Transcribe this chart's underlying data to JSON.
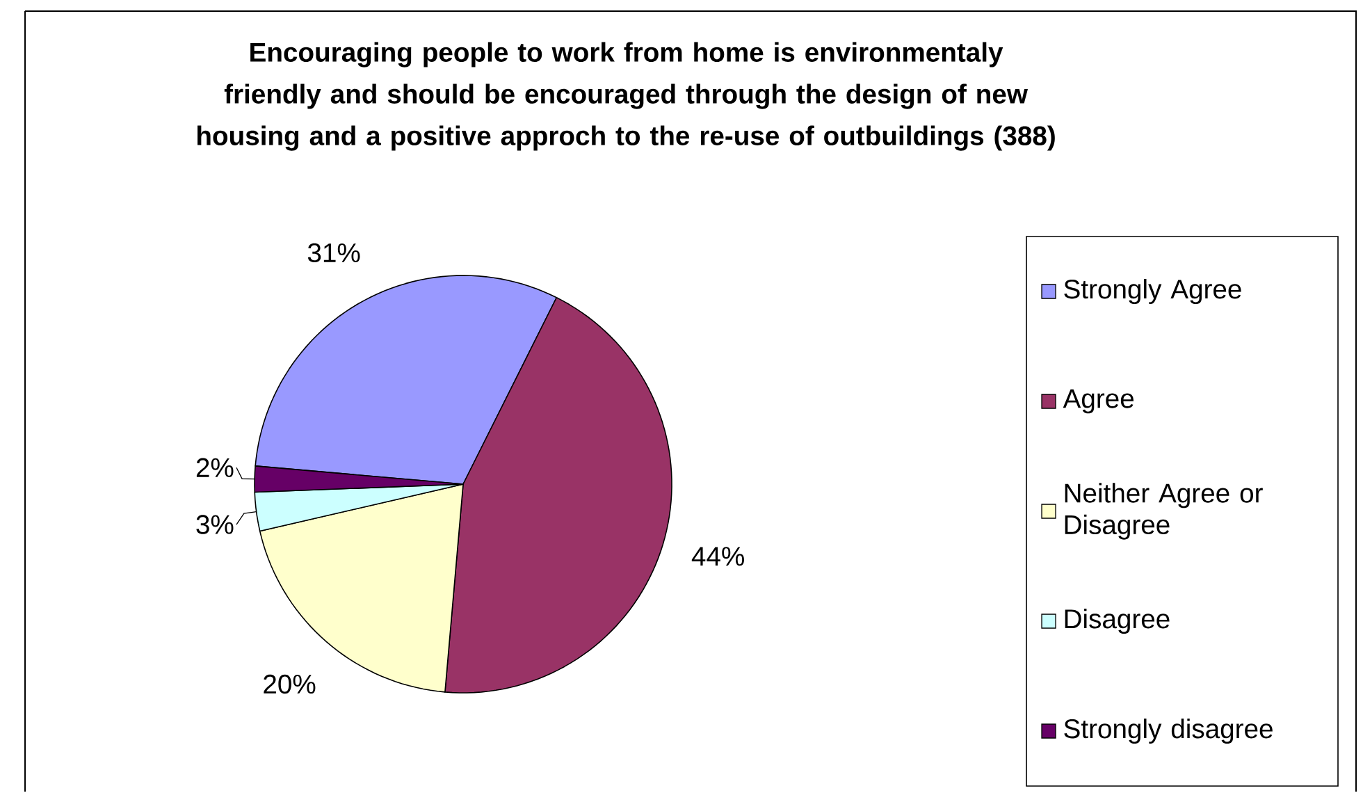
{
  "chart_data": {
    "type": "pie",
    "title": "Encouraging people to work from home is environmentaly friendly and should be encouraged through the design of new housing and a positive approch to the re-use of outbuildings (388)",
    "categories": [
      "Strongly Agree",
      "Agree",
      "Neither Agree or Disagree",
      "Disagree",
      "Strongly disagree"
    ],
    "values": [
      31,
      44,
      20,
      3,
      2
    ],
    "value_labels": [
      "31%",
      "44%",
      "20%",
      "3%",
      "2%"
    ],
    "colors": [
      "#9999ff",
      "#993366",
      "#ffffcc",
      "#ccffff",
      "#660066"
    ],
    "legend": "right"
  }
}
